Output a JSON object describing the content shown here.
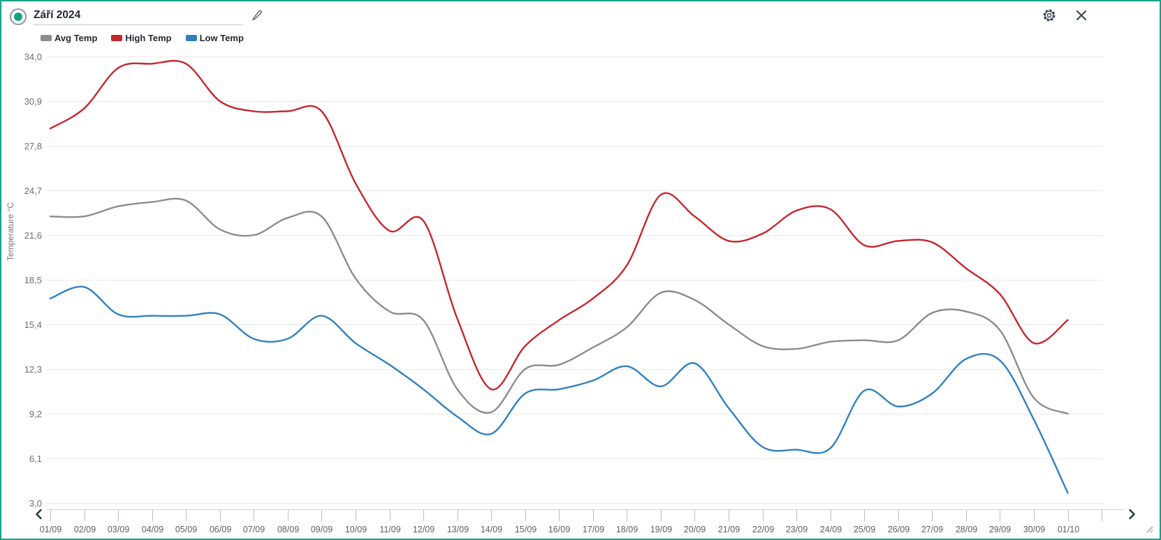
{
  "header": {
    "title": "Září 2024",
    "radio_selected": true,
    "accent_color": "#12a386",
    "icons": {
      "edit": "pencil-icon",
      "settings": "gear-icon",
      "close": "close-icon"
    }
  },
  "legend": {
    "items": [
      {
        "label": "Avg Temp",
        "color": "#8c8c8c"
      },
      {
        "label": "High Temp",
        "color": "#c5262d"
      },
      {
        "label": "Low Temp",
        "color": "#3080c0"
      }
    ]
  },
  "chart_data": {
    "type": "line",
    "title": "Září 2024",
    "ylabel": "Temperature °C",
    "xlabel": "",
    "ylim": [
      3.0,
      34.0
    ],
    "grid": "horizontal",
    "legend_position": "top-left",
    "yticks": [
      "34,0",
      "30,9",
      "27,8",
      "24,7",
      "21,6",
      "18,5",
      "15,4",
      "12,3",
      "9,2",
      "6,1",
      "3,0"
    ],
    "x": [
      "01/09",
      "02/09",
      "03/09",
      "04/09",
      "05/09",
      "06/09",
      "07/09",
      "08/09",
      "09/09",
      "10/09",
      "11/09",
      "12/09",
      "13/09",
      "14/09",
      "15/09",
      "16/09",
      "17/09",
      "18/09",
      "19/09",
      "20/09",
      "21/09",
      "22/09",
      "23/09",
      "24/09",
      "25/09",
      "26/09",
      "27/09",
      "28/09",
      "29/09",
      "30/09",
      "01/10"
    ],
    "series": [
      {
        "name": "Avg Temp",
        "color": "#8c8c8c",
        "values": [
          22.9,
          22.9,
          23.6,
          23.9,
          24.0,
          22.0,
          21.6,
          22.8,
          22.9,
          18.6,
          16.3,
          15.7,
          10.9,
          9.3,
          12.3,
          12.6,
          13.8,
          15.2,
          17.6,
          17.1,
          15.4,
          13.9,
          13.7,
          14.2,
          14.3,
          14.3,
          16.2,
          16.3,
          15.0,
          10.3,
          9.2
        ]
      },
      {
        "name": "High Temp",
        "color": "#c5262d",
        "values": [
          29.0,
          30.4,
          33.2,
          33.5,
          33.5,
          30.9,
          30.2,
          30.2,
          30.2,
          25.2,
          21.9,
          22.6,
          15.8,
          10.9,
          13.9,
          15.7,
          17.2,
          19.5,
          24.4,
          22.9,
          21.2,
          21.7,
          23.3,
          23.4,
          20.9,
          21.2,
          21.1,
          19.3,
          17.5,
          14.1,
          15.7
        ]
      },
      {
        "name": "Low Temp",
        "color": "#3080c0",
        "values": [
          17.2,
          18.0,
          16.1,
          16.0,
          16.0,
          16.1,
          14.4,
          14.4,
          16.0,
          14.1,
          12.6,
          10.9,
          9.0,
          7.8,
          10.6,
          10.9,
          11.5,
          12.5,
          11.1,
          12.7,
          9.6,
          6.9,
          6.7,
          6.8,
          10.8,
          9.7,
          10.6,
          13.0,
          12.9,
          8.8,
          3.7
        ]
      }
    ]
  },
  "xaxis_nav": {
    "prev": "chevron-left-icon",
    "next": "chevron-right-icon",
    "resize": "resize-grip-icon"
  },
  "colors": {
    "border": "#12a386",
    "grid": "#e8e8e8",
    "ytick_text": "#6d6d6d",
    "xlabel_text": "#59616b",
    "tick_mark": "#b5bfcb",
    "strip_line": "#ccd3da",
    "icon": "#3d4a57",
    "chevron": "#233240"
  }
}
